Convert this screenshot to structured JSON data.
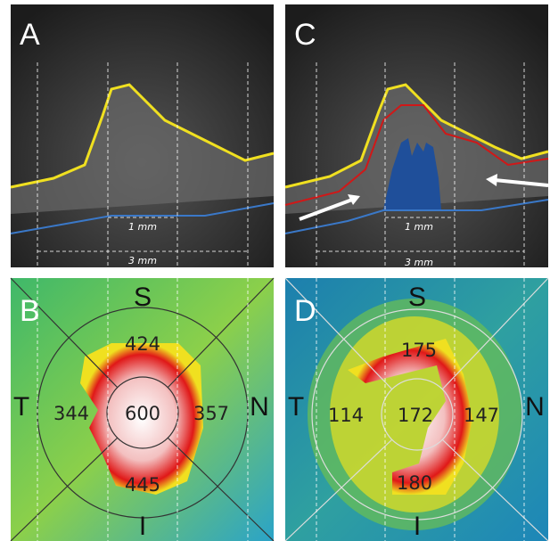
{
  "panels": [
    {
      "label": "A",
      "scale_labels": [
        "1 mm",
        "3 mm"
      ]
    },
    {
      "label": "B",
      "directions": [
        "S",
        "T",
        "N",
        "I"
      ],
      "thickness": {
        "superior": 424,
        "temporal": 344,
        "center": 600,
        "nasal": 357,
        "inferior": 445
      }
    },
    {
      "label": "C",
      "scale_labels": [
        "1 mm",
        "3 mm"
      ]
    },
    {
      "label": "D",
      "directions": [
        "S",
        "T",
        "N",
        "I"
      ],
      "thickness": {
        "superior": 175,
        "temporal": 114,
        "center": 172,
        "nasal": 147,
        "inferior": 180
      }
    }
  ]
}
